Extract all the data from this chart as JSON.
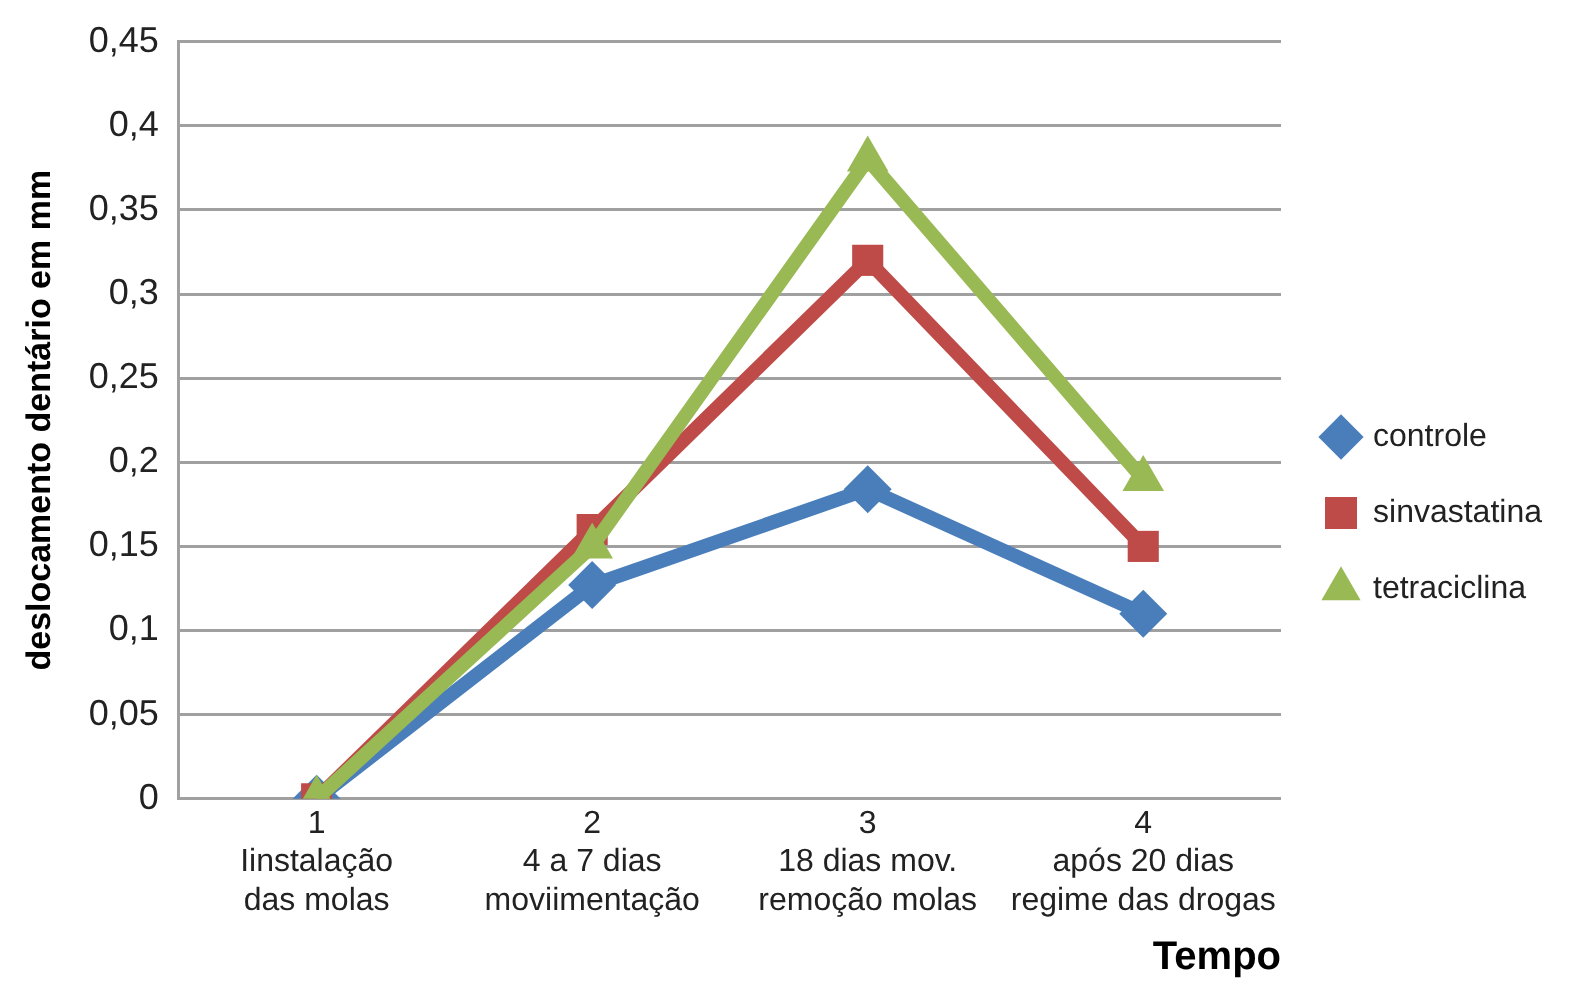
{
  "chart_data": {
    "type": "line",
    "xlabel": "Tempo",
    "ylabel": "deslocamento dentário em mm",
    "categories": [
      "1\nIinstalação\ndas molas",
      "2\n4 a 7 dias\nmoviimentação",
      "3\n18 dias mov.\nremoção molas",
      "4\napós 20 dias\nregime das drogas"
    ],
    "series": [
      {
        "name": "controle",
        "color": "#4a7ebb",
        "marker": "diamond",
        "values": [
          0,
          0.127,
          0.184,
          0.11
        ]
      },
      {
        "name": "sinvastatina",
        "color": "#be4b48",
        "marker": "square",
        "values": [
          0,
          0.16,
          0.32,
          0.15
        ]
      },
      {
        "name": "tetraciclina",
        "color": "#98b954",
        "marker": "triangle",
        "values": [
          0,
          0.15,
          0.38,
          0.19
        ]
      }
    ],
    "ylim": [
      0,
      0.45
    ],
    "yticks": [
      0,
      {
        "value": 0.05,
        "label": "0,05"
      },
      {
        "value": 0.1,
        "label": "0,1"
      },
      {
        "value": 0.15,
        "label": "0,15"
      },
      {
        "value": 0.2,
        "label": "0,2"
      },
      {
        "value": 0.25,
        "label": "0,25"
      },
      {
        "value": 0.3,
        "label": "0,3"
      },
      {
        "value": 0.35,
        "label": "0,35"
      },
      {
        "value": 0.4,
        "label": "0,4"
      },
      {
        "value": 0.45,
        "label": "0,45"
      }
    ],
    "grid": "y",
    "legend": "right",
    "line_style": "solid"
  }
}
